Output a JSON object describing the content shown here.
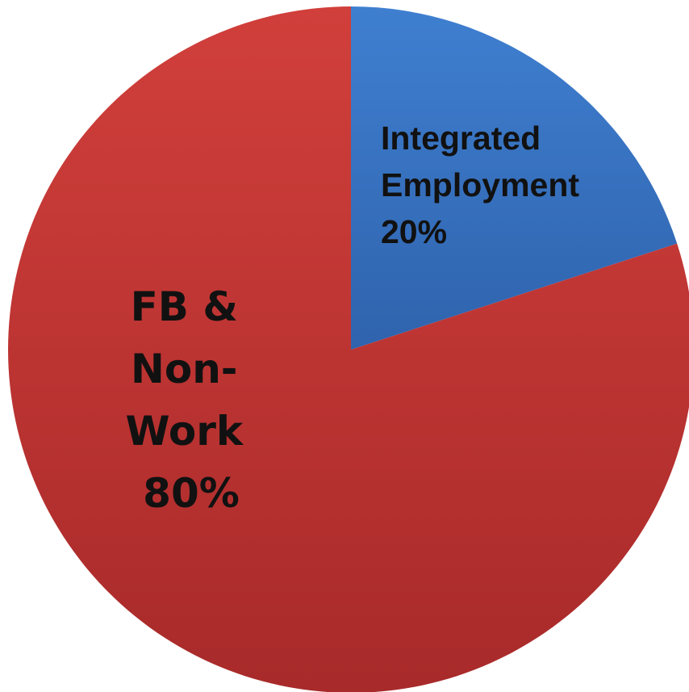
{
  "chart_data": {
    "type": "pie",
    "slices": [
      {
        "label_lines": [
          "Integrated",
          "Employment",
          "20%"
        ],
        "value": 20,
        "color": "#3a74c3"
      },
      {
        "label_lines": [
          "FB &",
          "Non-",
          "Work",
          "80%"
        ],
        "value": 80,
        "color": "#c0393a"
      }
    ],
    "start": "12 o'clock",
    "direction": "clockwise",
    "legend": "none"
  }
}
